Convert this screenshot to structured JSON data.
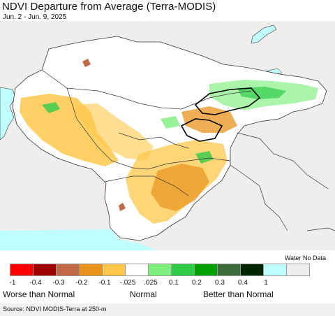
{
  "header": {
    "title": "NDVI Departure from Average (Terra-MODIS)",
    "date_range": "Jun. 2 - Jun. 9, 2025"
  },
  "legend": {
    "water_no_data_label": "Water No Data",
    "swatch_colors": [
      "#ff0000",
      "#a00000",
      "#c26a45",
      "#e8931c",
      "#ffc84a",
      "#ffffff",
      "#7ef07e",
      "#2fcc4a",
      "#00a000",
      "#3a6b38",
      "#002600",
      "#c0ffff",
      "#f0eeec"
    ],
    "ticks": [
      "-1",
      "-0.4",
      "-0.3",
      "-0.2",
      "-0.1",
      "-.025",
      ".025",
      "0.1",
      "0.2",
      "0.3",
      "0.4",
      "1"
    ],
    "categories": {
      "worse": "Worse than Normal",
      "normal": "Normal",
      "better": "Better than Normal"
    }
  },
  "footer": {
    "source": "Source: NDVI MODIS-Terra at 250-m"
  },
  "map": {
    "colors": {
      "water": "#c0ffff",
      "no_data": "#f0eeec",
      "normal": "#ffffff",
      "slightly_worse": "#ffc84a",
      "worse": "#e8931c",
      "much_worse": "#c26a45",
      "slightly_better": "#7ef07e",
      "better": "#2fcc4a",
      "much_better": "#00a000"
    }
  }
}
